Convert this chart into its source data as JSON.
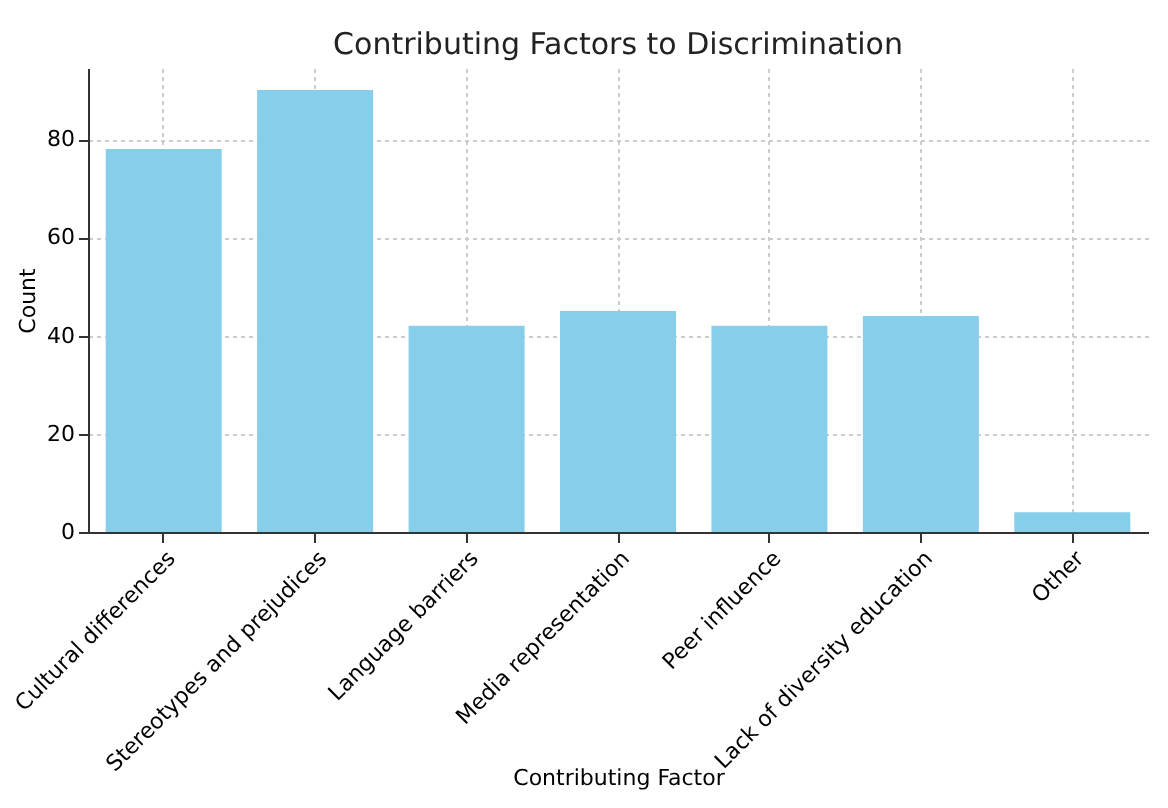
{
  "chart_data": {
    "type": "bar",
    "title": "Contributing Factors to Discrimination",
    "xlabel": "Contributing Factor",
    "ylabel": "Count",
    "categories": [
      "Cultural differences",
      "Stereotypes and prejudices",
      "Language barriers",
      "Media representation",
      "Peer influence",
      "Lack of diversity education",
      "Other"
    ],
    "values": [
      78,
      90,
      42,
      45,
      42,
      44,
      4
    ],
    "color": "#87ceeb",
    "ylim": [
      0,
      94.5
    ],
    "yticks": [
      0,
      20,
      40,
      60,
      80
    ],
    "grid": true
  }
}
